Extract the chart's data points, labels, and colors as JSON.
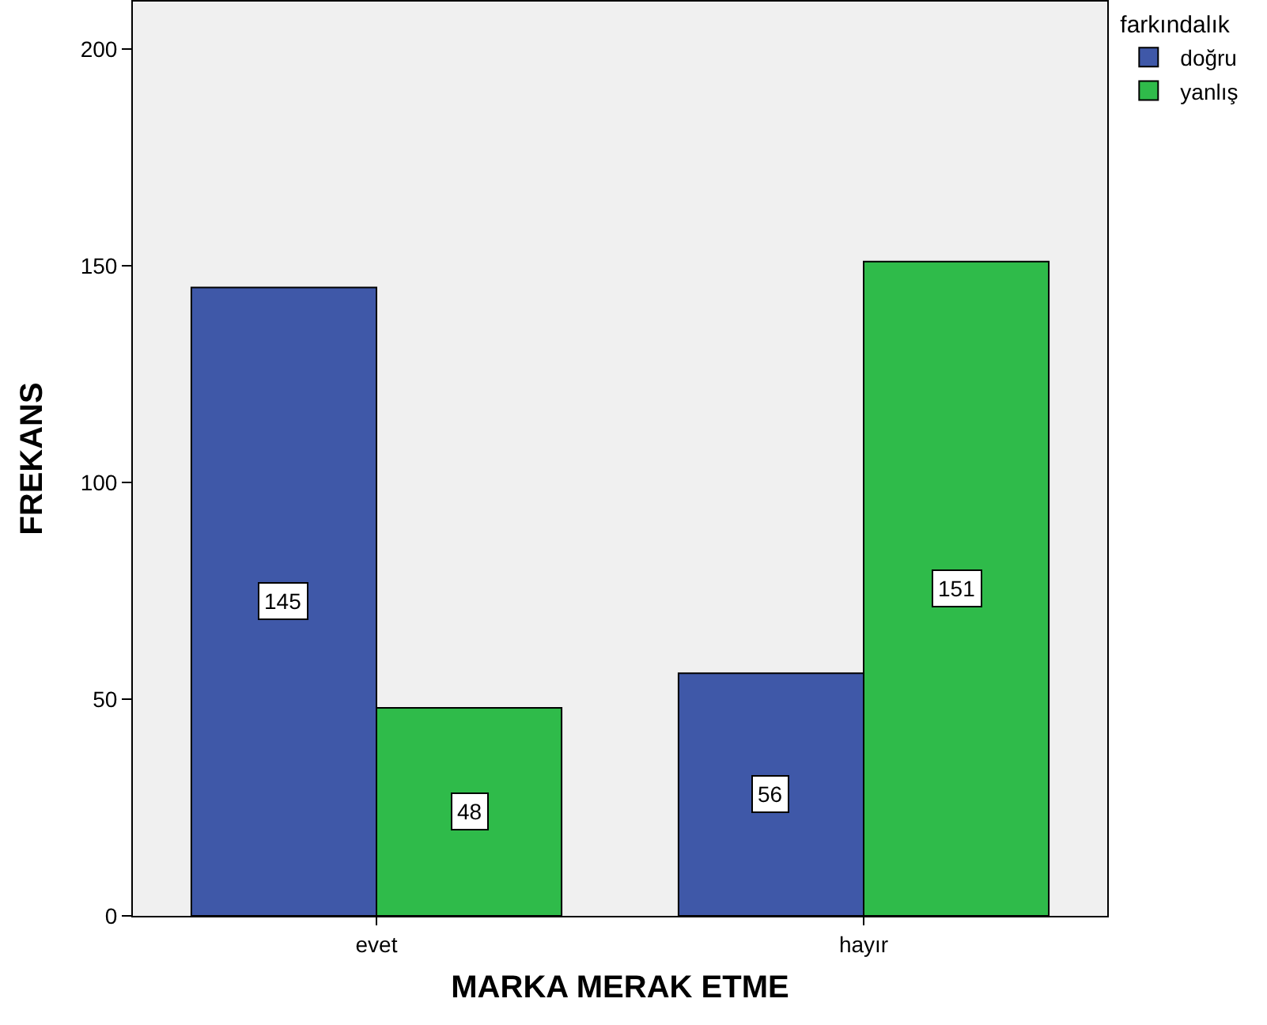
{
  "chart_data": {
    "type": "bar",
    "xlabel": "MARKA MERAK ETME",
    "ylabel": "FREKANS",
    "legend_title": "farkındalık",
    "categories": [
      "evet",
      "hayır"
    ],
    "series": [
      {
        "name": "doğru",
        "color": "#3f58a8",
        "values": [
          145,
          56
        ]
      },
      {
        "name": "yanlış",
        "color": "#2fbb4a",
        "values": [
          48,
          151
        ]
      }
    ],
    "ylim": [
      0,
      211
    ],
    "yticks": [
      0,
      50,
      100,
      150,
      200
    ],
    "grid": false,
    "legend": "top right",
    "data_labels": true
  }
}
